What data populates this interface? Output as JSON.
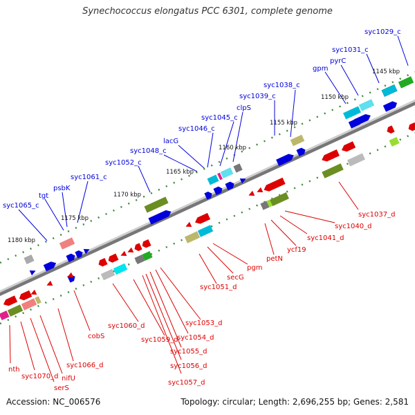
{
  "title": "Synechococcus elongatus PCC 6301, complete genome",
  "footer": {
    "accession": "Accession: NC_006576",
    "summary": "Topology: circular; Length: 2,696,255 bp; Genes: 2,581"
  },
  "colors": {
    "forward_strand": "#0000dd",
    "reverse_strand": "#dd0000",
    "backbone": "#888888"
  },
  "ticks": [
    "1145 kbp",
    "1150 kbp",
    "1155 kbp",
    "1160 kbp",
    "1165 kbp",
    "1170 kbp",
    "1175 kbp",
    "1180 kbp"
  ],
  "forward_labels": [
    "syc1029_c",
    "syc1031_c",
    "pyrC",
    "gpm",
    "syc1038_c",
    "syc1039_c",
    "clpS",
    "syc1045_c",
    "syc1046_c",
    "lacG",
    "syc1048_c",
    "syc1052_c",
    "syc1061_c",
    "psbK",
    "tgt",
    "syc1065_c"
  ],
  "reverse_labels": [
    "syc1037_d",
    "syc1040_d",
    "syc1041_d",
    "ycf19",
    "petN",
    "pgm",
    "secG",
    "syc1051_d",
    "syc1053_d",
    "syc1054_d",
    "syc1055_d",
    "syc1056_d",
    "syc1057_d",
    "syc1059_d",
    "syc1060_d",
    "cobS",
    "syc1066_d",
    "nifU",
    "serS",
    "syc1070_d",
    "nth"
  ]
}
